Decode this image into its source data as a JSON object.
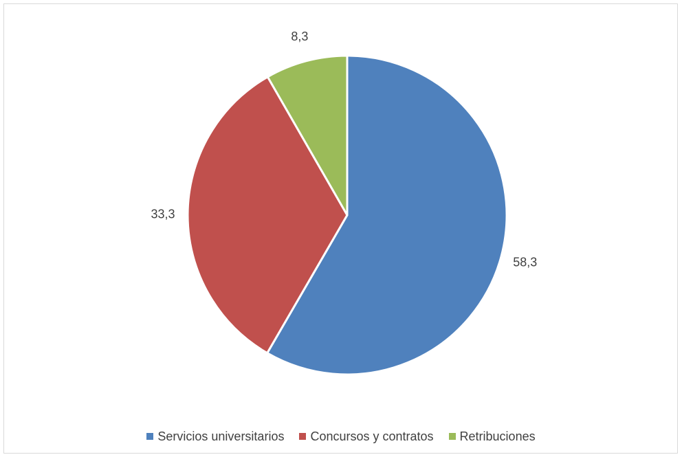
{
  "chart_data": {
    "type": "pie",
    "title": "",
    "start_angle_deg": 0,
    "direction": "clockwise",
    "legend_position": "bottom",
    "slices": [
      {
        "name": "Servicios universitarios",
        "value": 58.3,
        "label": "58,3",
        "color": "#4f81bd"
      },
      {
        "name": "Concursos y contratos",
        "value": 33.3,
        "label": "33,3",
        "color": "#c0504d"
      },
      {
        "name": "Retribuciones",
        "value": 8.3,
        "label": "8,3",
        "color": "#9bbb59"
      }
    ]
  }
}
